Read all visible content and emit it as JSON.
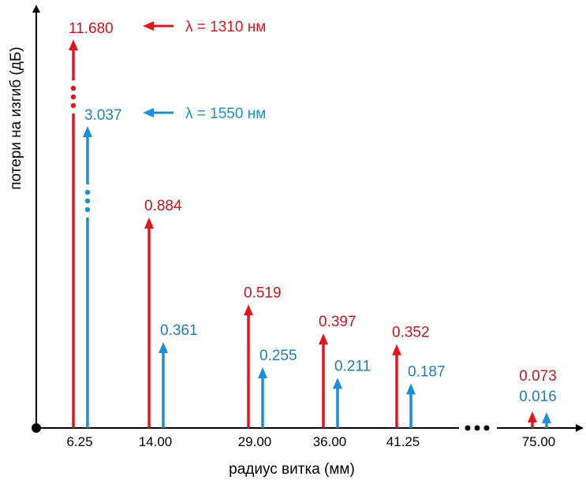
{
  "chart_data": {
    "type": "bar",
    "xlabel": "радиус витка (мм)",
    "ylabel": "потери на изгиб (дБ)",
    "categories": [
      "6.25",
      "14.00",
      "29.00",
      "36.00",
      "41.25",
      "75.00"
    ],
    "series": [
      {
        "name": "λ = 1310 нм",
        "color": "#e0161c",
        "values": [
          11.68,
          0.884,
          0.519,
          0.397,
          0.352,
          0.073
        ],
        "labels": [
          "11.680",
          "0.884",
          "0.519",
          "0.397",
          "0.352",
          "0.073"
        ]
      },
      {
        "name": "λ = 1550 нм",
        "color": "#1a8fd6",
        "values": [
          3.037,
          0.361,
          0.255,
          0.211,
          0.187,
          0.016
        ],
        "labels": [
          "3.037",
          "0.361",
          "0.255",
          "0.211",
          "0.187",
          "0.016"
        ]
      }
    ],
    "y_axis": "broken",
    "label_colors": {
      "1310": "#c4161c",
      "1550": "#1f7fb8"
    },
    "legend_placement": "top, beside first bar pair",
    "grid": false
  }
}
